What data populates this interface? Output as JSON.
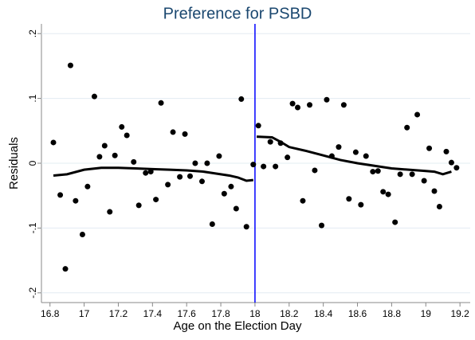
{
  "chart_data": {
    "type": "scatter",
    "title": "Preference for PSBD",
    "xlabel": "Age on the Election Day",
    "ylabel": "Residuals",
    "xlim": [
      16.75,
      19.26
    ],
    "ylim": [
      -0.215,
      0.215
    ],
    "xticks": [
      16.8,
      17,
      17.2,
      17.4,
      17.6,
      17.8,
      18,
      18.2,
      18.4,
      18.6,
      18.8,
      19,
      19.2
    ],
    "yticks": [
      {
        "value": -0.2,
        "label": "-.2"
      },
      {
        "value": -0.1,
        "label": "-.1"
      },
      {
        "value": 0,
        "label": "0"
      },
      {
        "value": 0.1,
        "label": ".1"
      },
      {
        "value": 0.2,
        "label": ".2"
      }
    ],
    "grid": true,
    "vline": 18,
    "vline_color": "#0000ff",
    "series": [
      {
        "type": "scatter",
        "color": "#000000",
        "x": [
          16.82,
          16.86,
          16.89,
          16.92,
          16.95,
          16.99,
          17.02,
          17.06,
          17.09,
          17.12,
          17.15,
          17.18,
          17.22,
          17.25,
          17.29,
          17.32,
          17.36,
          17.39,
          17.42,
          17.45,
          17.49,
          17.52,
          17.56,
          17.59,
          17.62,
          17.65,
          17.69,
          17.72,
          17.75,
          17.79,
          17.82,
          17.86,
          17.89,
          17.92,
          17.95,
          17.99,
          18.02,
          18.05,
          18.09,
          18.12,
          18.15,
          18.19,
          18.22,
          18.25,
          18.28,
          18.32,
          18.35,
          18.39,
          18.42,
          18.45,
          18.49,
          18.52,
          18.55,
          18.59,
          18.62,
          18.65,
          18.69,
          18.72,
          18.75,
          18.78,
          18.82,
          18.85,
          18.89,
          18.92,
          18.95,
          18.99,
          19.02,
          19.05,
          19.08,
          19.12,
          19.15,
          19.18
        ],
        "values": [
          0.032,
          -0.049,
          -0.163,
          0.151,
          -0.058,
          -0.11,
          -0.036,
          0.103,
          0.01,
          0.027,
          -0.075,
          0.012,
          0.056,
          0.043,
          0.002,
          -0.065,
          -0.015,
          -0.013,
          -0.056,
          0.093,
          -0.033,
          0.048,
          -0.021,
          0.045,
          -0.02,
          0,
          -0.028,
          0,
          -0.094,
          0.011,
          -0.047,
          -0.036,
          -0.07,
          0.099,
          -0.098,
          -0.002,
          0.058,
          -0.005,
          0.033,
          -0.005,
          0.031,
          0.009,
          0.092,
          0.086,
          -0.058,
          0.09,
          -0.011,
          -0.096,
          0.098,
          0.011,
          0.025,
          0.09,
          -0.055,
          0.017,
          -0.064,
          0.011,
          -0.013,
          -0.012,
          -0.044,
          -0.048,
          -0.091,
          -0.017,
          0.055,
          -0.017,
          0.075,
          -0.027,
          0.023,
          -0.043,
          -0.067,
          0.018,
          0.001,
          -0.007
        ]
      },
      {
        "type": "line",
        "color": "#000000",
        "x": [
          16.82,
          16.9,
          17.0,
          17.1,
          17.2,
          17.3,
          17.4,
          17.5,
          17.6,
          17.7,
          17.8,
          17.85,
          17.9,
          17.95,
          17.99
        ],
        "values": [
          -0.019,
          -0.017,
          -0.01,
          -0.007,
          -0.007,
          -0.008,
          -0.009,
          -0.01,
          -0.011,
          -0.013,
          -0.017,
          -0.019,
          -0.022,
          -0.027,
          -0.026
        ]
      },
      {
        "type": "line",
        "color": "#000000",
        "x": [
          18.01,
          18.1,
          18.15,
          18.2,
          18.3,
          18.4,
          18.5,
          18.6,
          18.7,
          18.8,
          18.9,
          19.0,
          19.05,
          19.1,
          19.15
        ],
        "values": [
          0.041,
          0.04,
          0.033,
          0.025,
          0.019,
          0.012,
          0.005,
          0,
          -0.004,
          -0.008,
          -0.01,
          -0.012,
          -0.013,
          -0.017,
          -0.013
        ]
      }
    ]
  }
}
